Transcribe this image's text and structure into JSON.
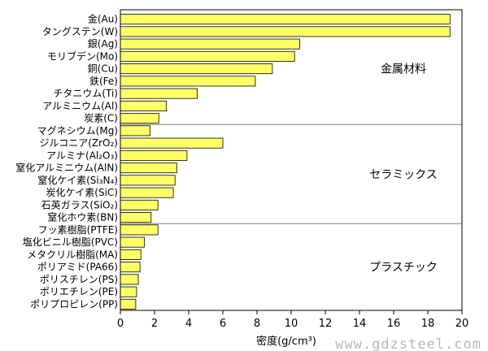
{
  "chart_data": {
    "type": "bar",
    "orientation": "horizontal",
    "xlabel": "密度(g/cm³)",
    "xlim": [
      0,
      20
    ],
    "xticks": [
      0,
      2,
      4,
      6,
      8,
      10,
      12,
      14,
      16,
      18,
      20
    ],
    "grid": false,
    "bar_color": "#ffff66",
    "categories": [
      "金(Au)",
      "タングステン(W)",
      "銀(Ag)",
      "モリブデン(Mo)",
      "銅(Cu)",
      "鉄(Fe)",
      "チタニウム(Ti)",
      "アルミニウム(Al)",
      "炭素(C)",
      "マグネシウム(Mg)",
      "ジルコニア(ZrO₂)",
      "アルミナ(Al₂O₃)",
      "窒化アルミニウム(AlN)",
      "窒化ケイ素(Si₃N₄)",
      "炭化ケイ素(SiC)",
      "石英ガラス(SiO₂)",
      "窒化ホウ素(BN)",
      "フッ素樹脂(PTFE)",
      "塩化ビニル樹脂(PVC)",
      "メタクリル樹脂(MA)",
      "ポリアミド(PA66)",
      "ポリスチレン(PS)",
      "ポリエチレン(PE)",
      "ポリプロピレン(PP)"
    ],
    "values": [
      19.3,
      19.3,
      10.5,
      10.2,
      8.9,
      7.9,
      4.5,
      2.7,
      2.25,
      1.74,
      6.0,
      3.9,
      3.3,
      3.2,
      3.1,
      2.2,
      1.8,
      2.2,
      1.4,
      1.2,
      1.15,
      1.05,
      0.95,
      0.9
    ],
    "groups": [
      {
        "label": "金属材料",
        "start": 0,
        "end": 8
      },
      {
        "label": "セラミックス",
        "start": 9,
        "end": 16
      },
      {
        "label": "プラスチック",
        "start": 17,
        "end": 23
      }
    ]
  },
  "watermark": "www.gdzsteel.com"
}
